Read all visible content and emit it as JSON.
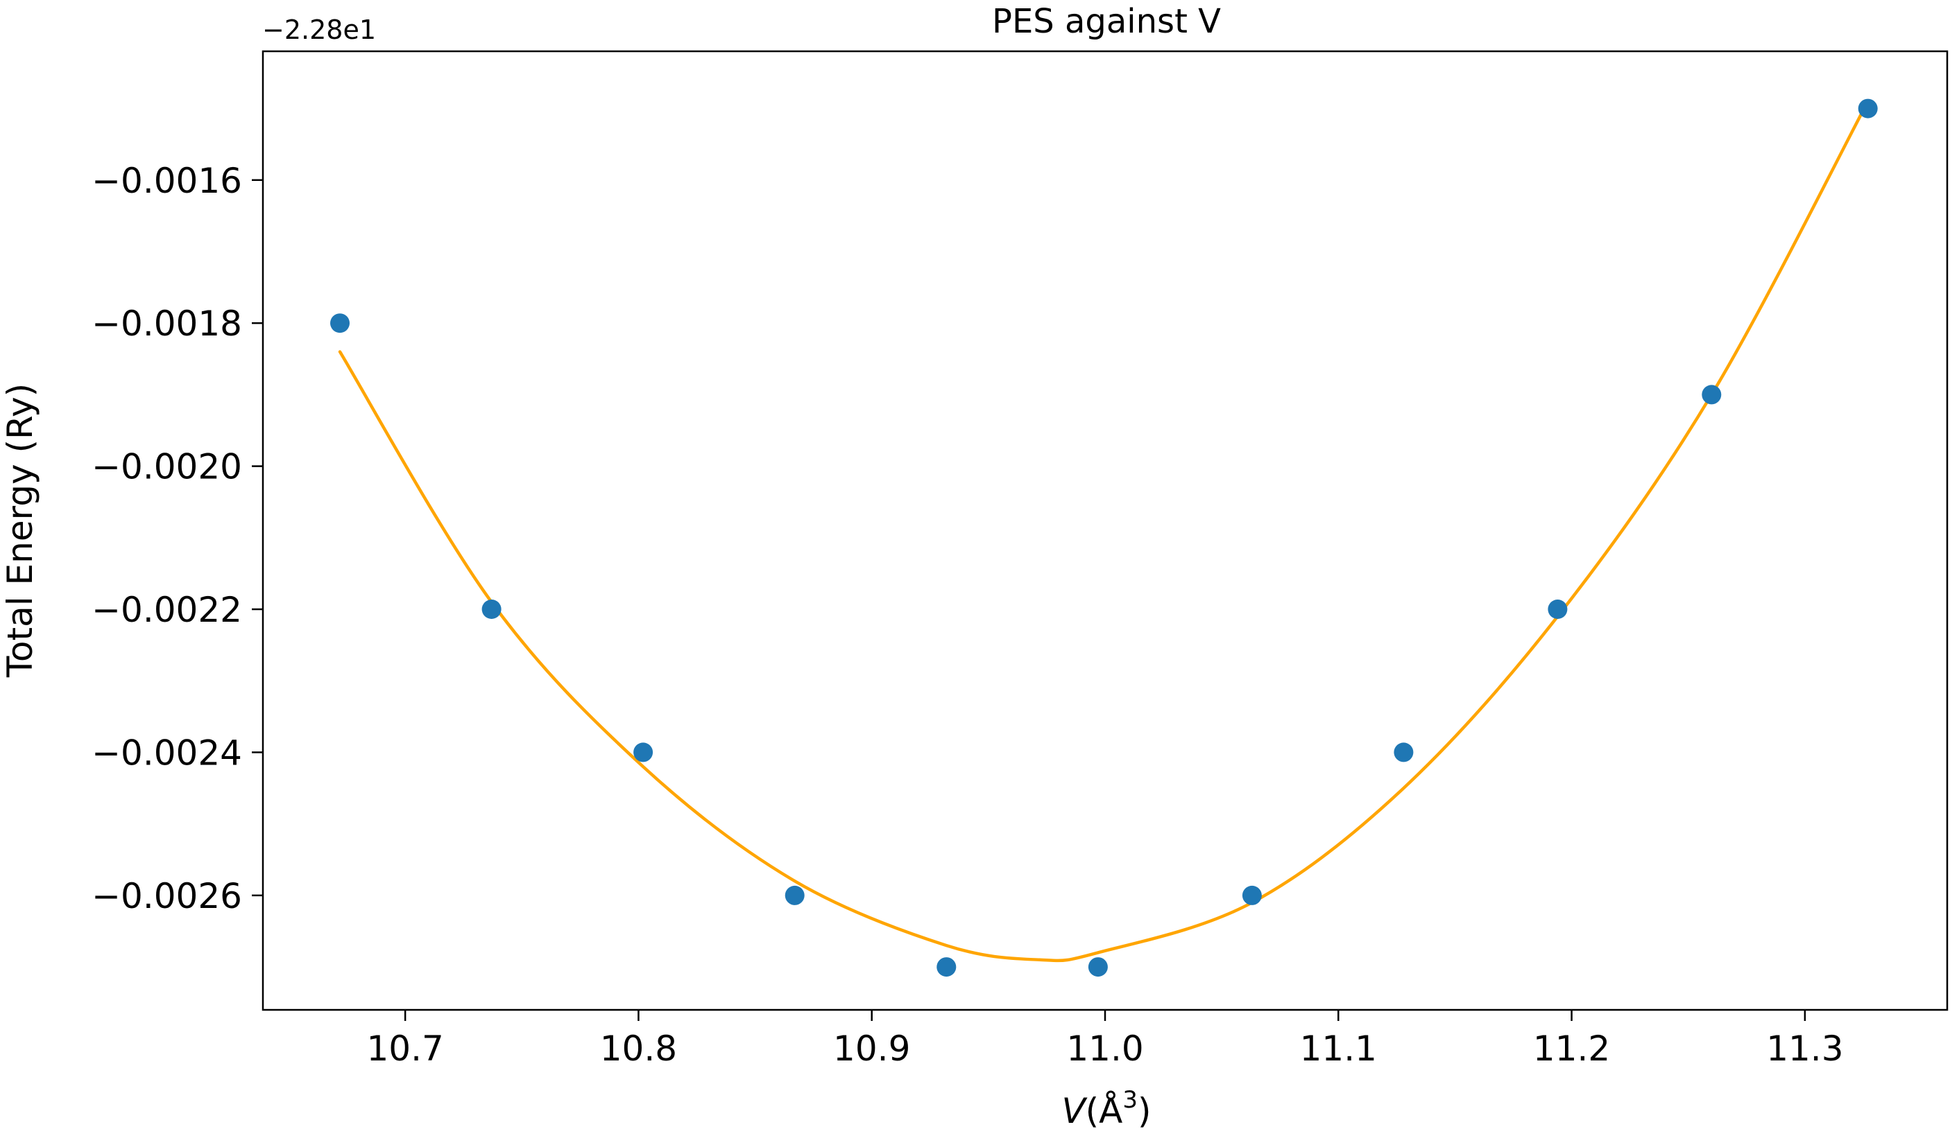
{
  "chart_data": {
    "type": "scatter",
    "title": "PES against V",
    "xlabel": {
      "italic": "V",
      "rest": "(Å",
      "sup": "3",
      "close": ")"
    },
    "ylabel": "Total Energy (Ry)",
    "y_offset_label": "−2.28e1",
    "xlim": [
      10.639,
      11.361
    ],
    "ylim": [
      -0.00276,
      -0.00142
    ],
    "x_ticks": [
      10.7,
      10.8,
      10.9,
      11.0,
      11.1,
      11.2,
      11.3
    ],
    "x_tick_labels": [
      "10.7",
      "10.8",
      "10.9",
      "11.0",
      "11.1",
      "11.2",
      "11.3"
    ],
    "y_ticks": [
      -0.0016,
      -0.0018,
      -0.002,
      -0.0022,
      -0.0024,
      -0.0026
    ],
    "y_tick_labels": [
      "−0.0016",
      "−0.0018",
      "−0.0020",
      "−0.0022",
      "−0.0024",
      "−0.0026"
    ],
    "grid": false,
    "legend": "none",
    "series": [
      {
        "kind": "points",
        "color": "#1f77b4",
        "x": [
          10.672,
          10.737,
          10.802,
          10.867,
          10.932,
          10.997,
          11.063,
          11.128,
          11.194,
          11.26,
          11.327
        ],
        "y": [
          -0.0018,
          -0.0022,
          -0.0024,
          -0.0026,
          -0.0027,
          -0.0027,
          -0.0026,
          -0.0024,
          -0.0022,
          -0.0019,
          -0.0015
        ]
      },
      {
        "kind": "fit-curve",
        "color": "#ffa500",
        "x": [
          10.672,
          10.737,
          10.802,
          10.867,
          10.932,
          10.972,
          10.997,
          11.063,
          11.128,
          11.194,
          11.26,
          11.327
        ],
        "y": [
          -0.00184,
          -0.00219,
          -0.00242,
          -0.00258,
          -0.00267,
          -0.00269,
          -0.00268,
          -0.00261,
          -0.00245,
          -0.00221,
          -0.0019,
          -0.00149
        ]
      }
    ]
  }
}
